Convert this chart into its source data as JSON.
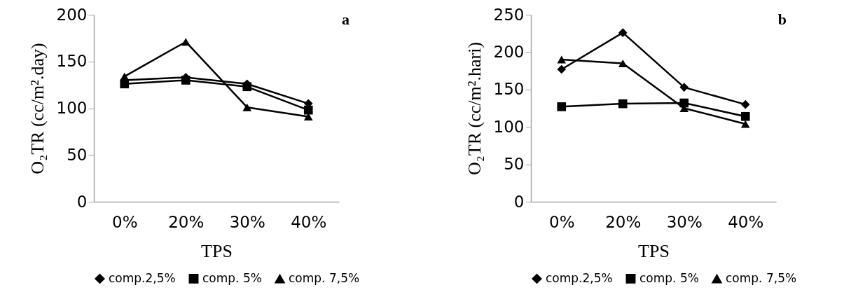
{
  "chart_data": [
    {
      "type": "line",
      "title": "a",
      "xlabel": "TPS",
      "ylabel": "O₂TR (cc/m².day)",
      "categories": [
        "0%",
        "20%",
        "30%",
        "40%"
      ],
      "ylim": [
        0,
        200
      ],
      "yticks": [
        0,
        50,
        100,
        150,
        200
      ],
      "grid": false,
      "legend": "bottom",
      "series": [
        {
          "name": "comp.2,5%",
          "color": "#000000",
          "marker": "diamond",
          "values": [
            130,
            133,
            126,
            105
          ]
        },
        {
          "name": "comp. 5%",
          "color": "#000000",
          "marker": "square",
          "values": [
            126,
            130,
            123,
            98
          ]
        },
        {
          "name": "comp. 7,5%",
          "color": "#000000",
          "marker": "triangle",
          "values": [
            134,
            171,
            101,
            91
          ]
        }
      ]
    },
    {
      "type": "line",
      "title": "b",
      "xlabel": "TPS",
      "ylabel": "O₂TR (cc/m².hari)",
      "categories": [
        "0%",
        "20%",
        "30%",
        "40%"
      ],
      "ylim": [
        0,
        250
      ],
      "yticks": [
        0,
        50,
        100,
        150,
        200,
        250
      ],
      "grid": false,
      "legend": "bottom",
      "series": [
        {
          "name": "comp.2,5%",
          "color": "#000000",
          "marker": "diamond",
          "values": [
            177,
            226,
            153,
            130
          ]
        },
        {
          "name": "comp. 5%",
          "color": "#000000",
          "marker": "square",
          "values": [
            127,
            131,
            132,
            114
          ]
        },
        {
          "name": "comp. 7,5%",
          "color": "#000000",
          "marker": "triangle",
          "values": [
            190,
            185,
            125,
            104
          ]
        }
      ]
    }
  ]
}
